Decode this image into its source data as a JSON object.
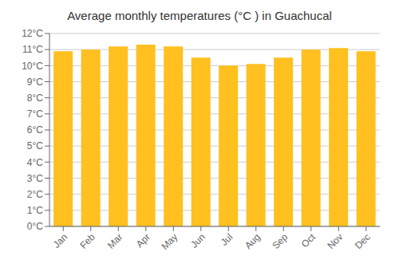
{
  "chart_data": {
    "type": "bar",
    "title": "Average monthly temperatures (°C ) in Guachucal",
    "categories": [
      "Jan",
      "Feb",
      "Mar",
      "Apr",
      "May",
      "Jun",
      "Jul",
      "Aug",
      "Sep",
      "Oct",
      "Nov",
      "Dec"
    ],
    "values": [
      10.9,
      11.0,
      11.2,
      11.3,
      11.2,
      10.5,
      10.0,
      10.1,
      10.5,
      11.0,
      11.1,
      10.9
    ],
    "color": "#FFC020",
    "ylim": [
      0,
      12
    ],
    "yticks": [
      {
        "value": 0,
        "label": "0°C"
      },
      {
        "value": 1,
        "label": "1°C"
      },
      {
        "value": 2,
        "label": "2°C"
      },
      {
        "value": 3,
        "label": "3°C"
      },
      {
        "value": 4,
        "label": "4°C"
      },
      {
        "value": 5,
        "label": "5°C"
      },
      {
        "value": 6,
        "label": "6°C"
      },
      {
        "value": 7,
        "label": "7°C"
      },
      {
        "value": 8,
        "label": "8°C"
      },
      {
        "value": 9,
        "label": "9°C"
      },
      {
        "value": 10,
        "label": "10°C"
      },
      {
        "value": 11,
        "label": "11°C"
      },
      {
        "value": 12,
        "label": "12°C"
      }
    ],
    "grid": true
  }
}
